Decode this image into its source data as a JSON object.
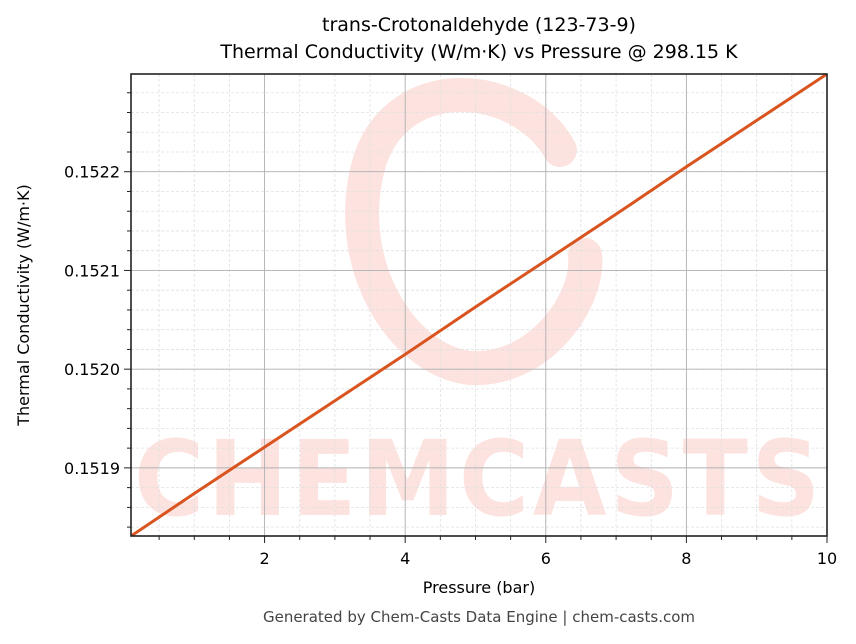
{
  "title": {
    "line1": "trans-Crotonaldehyde (123-73-9)",
    "line2": "Thermal Conductivity (W/m·K) vs Pressure @ 298.15 K"
  },
  "footer": "Generated by Chem-Casts Data Engine | chem-casts.com",
  "watermark": "CHEMCASTS",
  "colors": {
    "line": "#d9541e",
    "watermark": "#fde3e0",
    "grid_major": "#b0b0b0",
    "grid_minor": "#e0e0e0",
    "axis": "#222222"
  },
  "chart_data": {
    "type": "line",
    "title": "trans-Crotonaldehyde (123-73-9) Thermal Conductivity (W/m·K) vs Pressure @ 298.15 K",
    "xlabel": "Pressure (bar)",
    "ylabel": "Thermal Conductivity (W/m·K)",
    "xlim": [
      0.1,
      10
    ],
    "ylim": [
      0.151831,
      0.152299
    ],
    "xticks": [
      2,
      4,
      6,
      8,
      10
    ],
    "xtick_labels": [
      "2",
      "4",
      "6",
      "8",
      "10"
    ],
    "yticks": [
      0.1519,
      0.152,
      0.1521,
      0.1522
    ],
    "ytick_labels": [
      "0.1519",
      "0.1520",
      "0.1521",
      "0.1522"
    ],
    "grid": true,
    "legend": null,
    "series": [
      {
        "name": "Thermal Conductivity",
        "x": [
          0.1,
          1,
          2,
          3,
          4,
          5,
          6,
          7,
          8,
          9,
          10
        ],
        "y": [
          0.151831,
          0.151874,
          0.151921,
          0.151968,
          0.152015,
          0.152063,
          0.15211,
          0.152157,
          0.152205,
          0.152252,
          0.152299
        ]
      }
    ]
  }
}
